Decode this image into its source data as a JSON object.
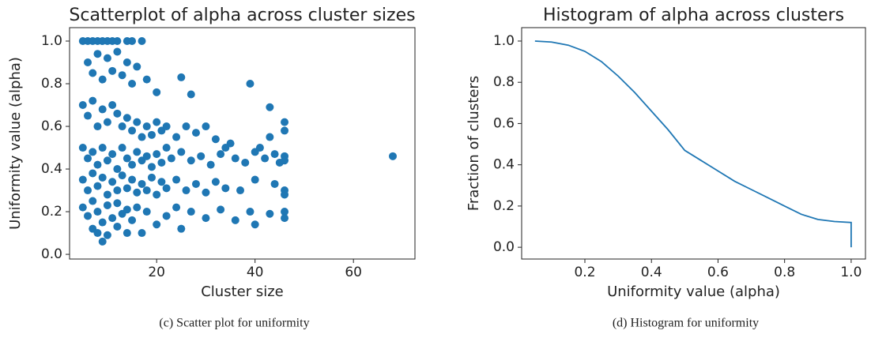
{
  "chart_data": [
    {
      "type": "scatter",
      "title": "Scatterplot of alpha across cluster sizes",
      "x_label": "Cluster size",
      "y_label": "Uniformity value (alpha)",
      "caption": "(c) Scatter plot for uniformity",
      "color": "#1f77b4",
      "xlim": [
        2.3,
        72.5
      ],
      "ylim": [
        -0.022,
        1.063
      ],
      "xticks": [
        20,
        40,
        60
      ],
      "yticks": [
        {
          "value": 0,
          "label": "0.0"
        },
        0.2,
        0.4,
        0.6,
        0.8,
        {
          "value": 1,
          "label": "1.0"
        }
      ],
      "x": [
        5,
        6,
        7,
        8,
        9,
        10,
        11,
        12,
        14,
        15,
        17,
        6,
        8,
        10,
        12,
        14,
        16,
        7,
        9,
        11,
        13,
        15,
        18,
        20,
        25,
        27,
        39,
        43,
        5,
        6,
        7,
        8,
        9,
        10,
        11,
        12,
        13,
        14,
        15,
        16,
        17,
        18,
        19,
        20,
        21,
        22,
        24,
        26,
        28,
        30,
        32,
        35,
        46,
        46,
        43,
        5,
        6,
        7,
        8,
        9,
        10,
        11,
        12,
        13,
        14,
        15,
        16,
        17,
        18,
        19,
        20,
        21,
        22,
        23,
        25,
        27,
        29,
        31,
        33,
        34,
        36,
        38,
        40,
        41,
        42,
        44,
        45,
        46,
        46,
        68,
        5,
        6,
        7,
        8,
        9,
        10,
        11,
        12,
        13,
        14,
        15,
        16,
        17,
        18,
        19,
        20,
        21,
        22,
        24,
        26,
        28,
        30,
        32,
        34,
        37,
        40,
        44,
        46,
        46,
        5,
        6,
        7,
        8,
        9,
        10,
        11,
        12,
        13,
        14,
        15,
        16,
        17,
        18,
        20,
        22,
        24,
        25,
        27,
        30,
        33,
        36,
        39,
        40,
        43,
        46,
        46,
        7,
        8,
        9,
        10,
        12,
        14
      ],
      "values": [
        1,
        1,
        1,
        1,
        1,
        1,
        1,
        1,
        1,
        1,
        1,
        0.9,
        0.94,
        0.92,
        0.95,
        0.9,
        0.88,
        0.85,
        0.82,
        0.86,
        0.84,
        0.8,
        0.82,
        0.76,
        0.83,
        0.75,
        0.8,
        0.69,
        0.7,
        0.65,
        0.72,
        0.6,
        0.68,
        0.62,
        0.7,
        0.66,
        0.6,
        0.64,
        0.58,
        0.62,
        0.55,
        0.6,
        0.56,
        0.62,
        0.58,
        0.6,
        0.55,
        0.6,
        0.57,
        0.6,
        0.54,
        0.52,
        0.62,
        0.58,
        0.55,
        0.5,
        0.45,
        0.48,
        0.42,
        0.5,
        0.44,
        0.47,
        0.4,
        0.5,
        0.45,
        0.42,
        0.48,
        0.44,
        0.46,
        0.41,
        0.47,
        0.43,
        0.5,
        0.45,
        0.48,
        0.44,
        0.46,
        0.42,
        0.47,
        0.5,
        0.45,
        0.43,
        0.48,
        0.5,
        0.45,
        0.47,
        0.43,
        0.46,
        0.44,
        0.46,
        0.35,
        0.3,
        0.38,
        0.32,
        0.36,
        0.28,
        0.34,
        0.3,
        0.37,
        0.31,
        0.35,
        0.29,
        0.33,
        0.3,
        0.36,
        0.28,
        0.34,
        0.31,
        0.35,
        0.3,
        0.33,
        0.29,
        0.34,
        0.31,
        0.3,
        0.35,
        0.33,
        0.3,
        0.28,
        0.22,
        0.18,
        0.25,
        0.2,
        0.15,
        0.23,
        0.17,
        0.24,
        0.19,
        0.21,
        0.16,
        0.22,
        0.1,
        0.2,
        0.14,
        0.18,
        0.22,
        0.12,
        0.2,
        0.17,
        0.21,
        0.16,
        0.2,
        0.14,
        0.19,
        0.2,
        0.17,
        0.12,
        0.1,
        0.06,
        0.09,
        0.13,
        0.1
      ]
    },
    {
      "type": "line",
      "title": "Histogram of alpha across clusters",
      "x_label": "Uniformity value (alpha)",
      "y_label": "Fraction of clusters",
      "caption": "(d) Histogram for uniformity",
      "color": "#1f77b4",
      "xlim": [
        0.01,
        1.043
      ],
      "ylim": [
        -0.057,
        1.065
      ],
      "xticks": [
        0.2,
        0.4,
        0.6,
        0.8,
        {
          "value": 1,
          "label": "1.0"
        }
      ],
      "yticks": [
        {
          "value": 0,
          "label": "0.0"
        },
        0.2,
        0.4,
        0.6,
        0.8,
        {
          "value": 1,
          "label": "1.0"
        }
      ],
      "x": [
        0.05,
        0.1,
        0.15,
        0.2,
        0.25,
        0.3,
        0.35,
        0.4,
        0.45,
        0.5,
        0.55,
        0.6,
        0.65,
        0.7,
        0.75,
        0.8,
        0.85,
        0.9,
        0.95,
        1.0,
        1.0
      ],
      "values": [
        1.0,
        0.995,
        0.98,
        0.95,
        0.9,
        0.83,
        0.75,
        0.66,
        0.57,
        0.47,
        0.42,
        0.37,
        0.32,
        0.28,
        0.24,
        0.2,
        0.16,
        0.135,
        0.125,
        0.12,
        0.0
      ]
    }
  ]
}
